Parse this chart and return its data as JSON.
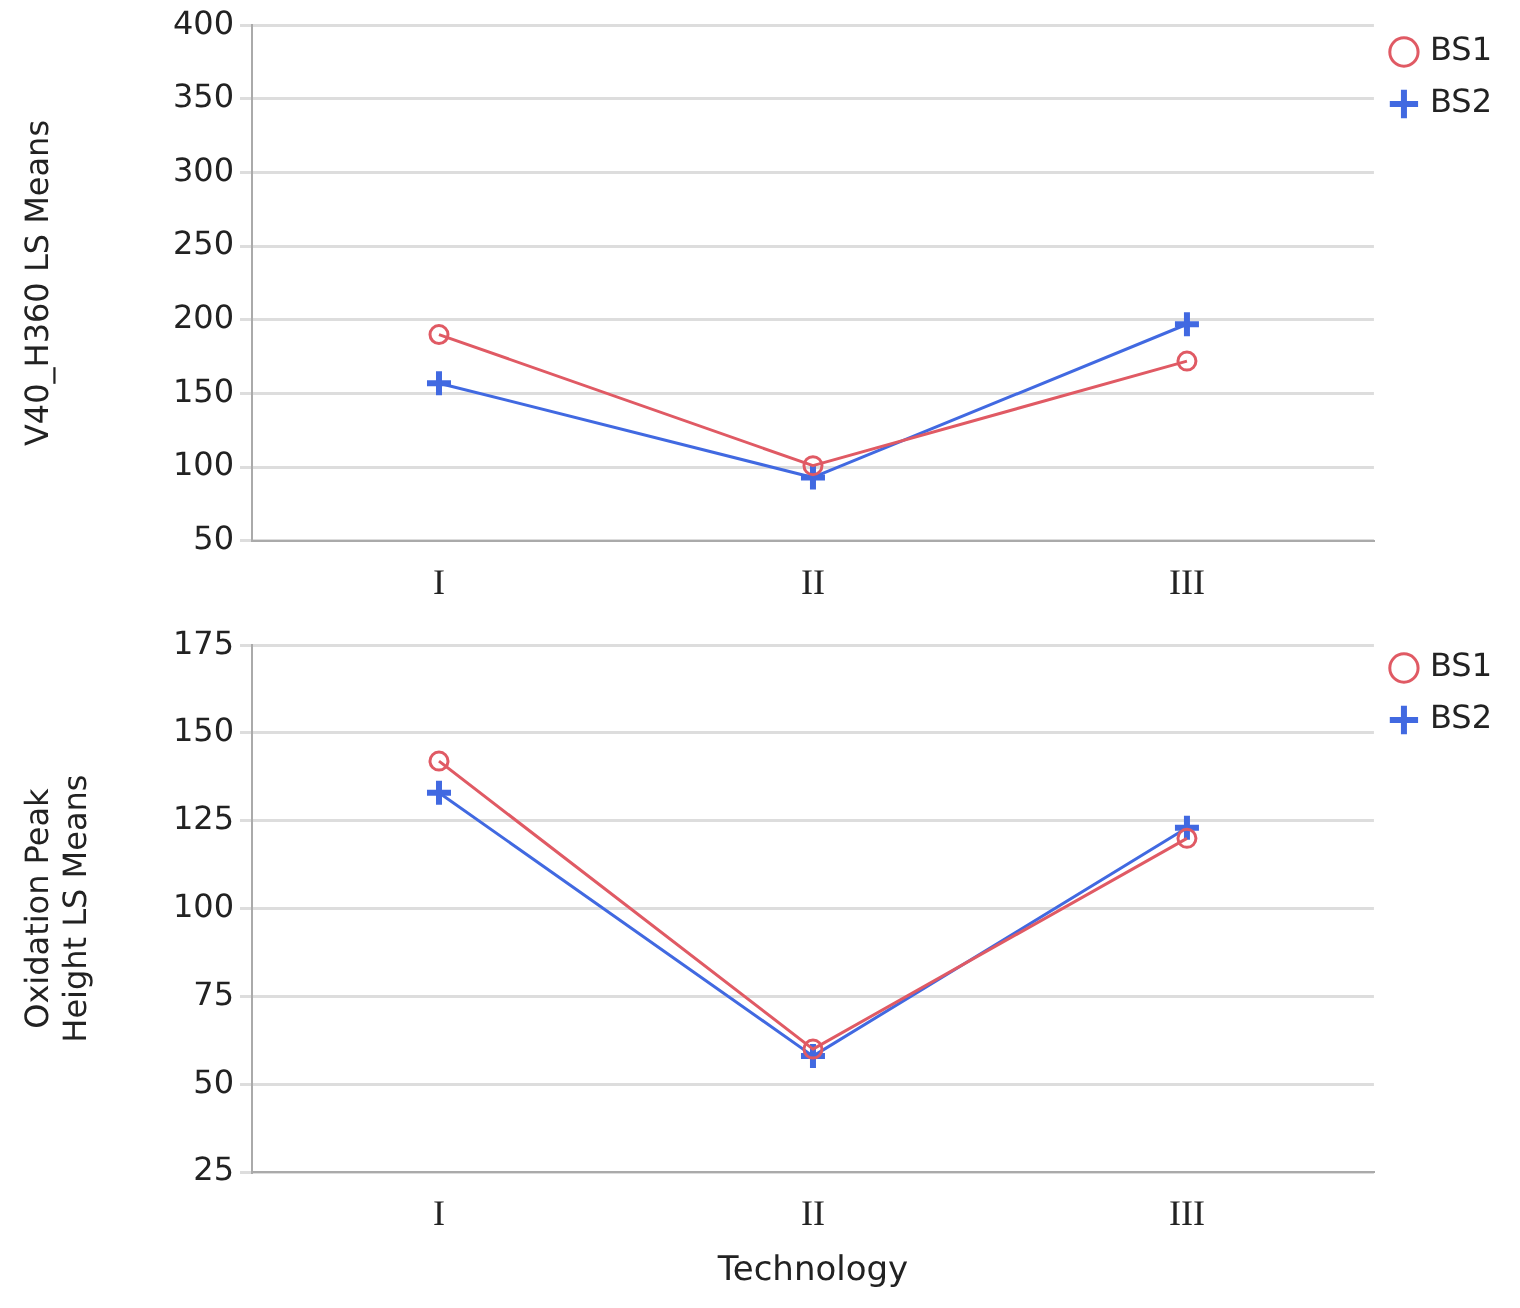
{
  "chart_data": [
    {
      "type": "line",
      "categories": [
        "I",
        "II",
        "III"
      ],
      "ylabel": "V40_H360 LS Means",
      "ylim": [
        50,
        400
      ],
      "yticks": [
        50,
        100,
        150,
        200,
        250,
        300,
        350,
        400
      ],
      "grid": "y",
      "legend": "top right",
      "series": [
        {
          "name": "BS1",
          "color": "#e05a64",
          "marker": "circle",
          "values": [
            190,
            101,
            172
          ]
        },
        {
          "name": "BS2",
          "color": "#4169e1",
          "marker": "cross",
          "values": [
            157,
            93,
            197
          ]
        }
      ]
    },
    {
      "type": "line",
      "categories": [
        "I",
        "II",
        "III"
      ],
      "xlabel": "Technology",
      "ylabel": "Oxidation Peak Height LS Means",
      "ylim": [
        25,
        175
      ],
      "yticks": [
        25,
        50,
        75,
        100,
        125,
        150,
        175
      ],
      "grid": "y",
      "legend": "top right",
      "series": [
        {
          "name": "BS1",
          "color": "#e05a64",
          "marker": "circle",
          "values": [
            142,
            60,
            120
          ]
        },
        {
          "name": "BS2",
          "color": "#4169e1",
          "marker": "cross",
          "values": [
            133,
            58,
            123
          ]
        }
      ]
    }
  ]
}
